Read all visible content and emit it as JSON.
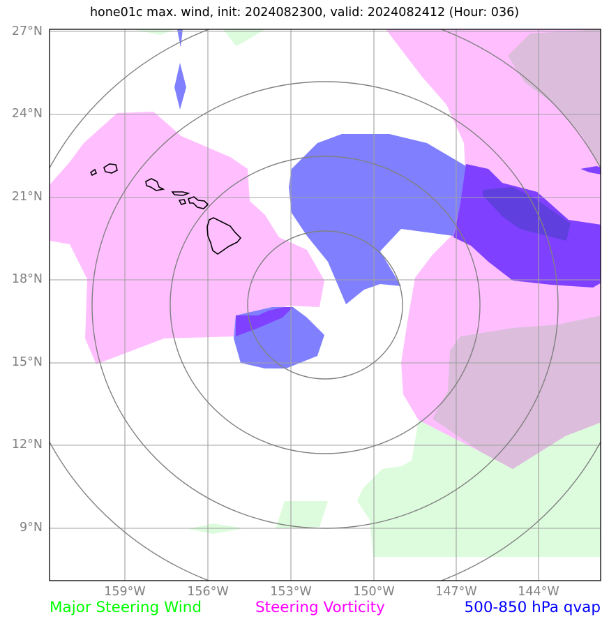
{
  "title": "hone01c max. wind, init: 2024082300, valid: 2024082412 (Hour: 036)",
  "lat_labels": [
    "27°N",
    "24°N",
    "21°N",
    "18°N",
    "15°N",
    "12°N",
    "9°N"
  ],
  "lon_labels": [
    "159°W",
    "156°W",
    "153°W",
    "150°W",
    "147°W",
    "144°W"
  ],
  "legend": {
    "wind": {
      "label": "Major Steering Wind",
      "color": "#00ff00"
    },
    "vorticity": {
      "label": "Steering Vorticity",
      "color": "#ff00ff"
    },
    "qvap": {
      "label": "500-850 hPa qvap",
      "color": "#0000ff"
    }
  },
  "colors": {
    "wind_fill": "#ddfcdd",
    "vorticity_fill": "#ffbfff",
    "overlap_fill": "#dcbddc",
    "qvap_fill": "#8080ff",
    "qvap_strong_fill": "#7f40ff",
    "qvap_core_fill": "#5f40df",
    "grid": "#a0a0a0",
    "range_rings": "#808080",
    "coastline": "#000000"
  },
  "features": [
    "Hawaiian Islands",
    "range rings around storm center"
  ]
}
